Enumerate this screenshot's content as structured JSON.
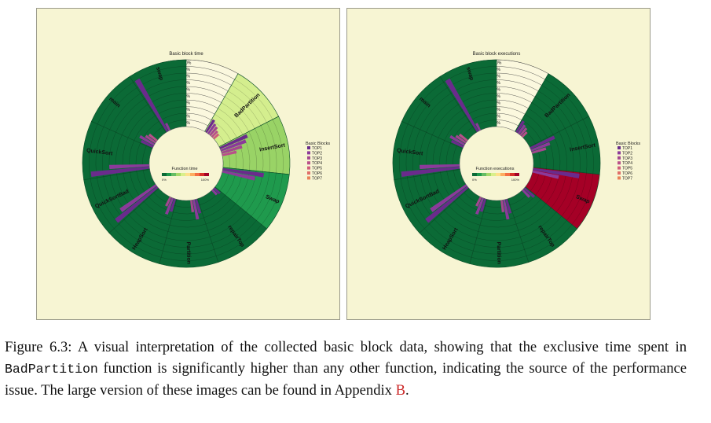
{
  "figure": {
    "caption_label": "Figure 6.3:",
    "caption_part1": "A visual interpretation of the collected basic block data, showing that the exclusive time spent in",
    "caption_code": "BadPartition",
    "caption_part2": "function is significantly higher than any other function, indicating the source of the performance issue. The large version of these images can be found in Appendix",
    "caption_ref": "B",
    "caption_end": "."
  },
  "colors": {
    "panel_bg": "#f7f5d3",
    "dark_green": "#0b6a36",
    "mid_green": "#1f9a4d",
    "light_green": "#99d366",
    "pale_green": "#d4ee8e",
    "red": "#a50026",
    "gap_fill": "#fbf8de",
    "top_colors": [
      "#6a2b8c",
      "#8b3a9a",
      "#a4468f",
      "#b9508a",
      "#d05d7a",
      "#e06e6a",
      "#ea8158"
    ]
  },
  "chart_data": [
    {
      "type": "radial-bar",
      "title": "Basic block time",
      "scale_labels": [
        "100%",
        "90%",
        "80%",
        "70%",
        "60%",
        "50%",
        "40%",
        "30%",
        "20%",
        "10%"
      ],
      "center_label": "Function time",
      "center_min_label": "0%",
      "center_max_label": "100%",
      "legend_title": "Basic Blocks",
      "legend_items": [
        "TOP1",
        "TOP2",
        "TOP3",
        "TOP4",
        "TOP5",
        "TOP6",
        "TOP7"
      ],
      "functions": [
        {
          "name": "BadPartition",
          "color": "#d4ee8e"
        },
        {
          "name": "InsertSort",
          "color": "#99d366"
        },
        {
          "name": "Swap",
          "color": "#1f9a4d"
        },
        {
          "name": "repairTop",
          "color": "#0b6a36"
        },
        {
          "name": "Partition",
          "color": "#0b6a36"
        },
        {
          "name": "HeapSort",
          "color": "#0b6a36"
        },
        {
          "name": "QuickSortBad",
          "color": "#0b6a36"
        },
        {
          "name": "QuickSort",
          "color": "#0b6a36"
        },
        {
          "name": "main",
          "color": "#0b6a36"
        },
        {
          "name": "swap",
          "color": "#0b6a36"
        }
      ],
      "bars": [
        [
          0.22,
          0.18,
          0.16,
          0.12,
          0.1
        ],
        [
          0.45,
          0.4,
          0.32,
          0.22
        ],
        [
          0.62,
          0.5
        ],
        [
          0.12,
          0.1
        ],
        [
          0.22,
          0.3,
          0.18
        ],
        [
          0.2,
          0.26,
          0.15
        ],
        [
          0.8,
          0.65
        ],
        [
          0.88,
          0.6
        ],
        [
          0.2,
          0.25,
          0.18,
          0.15
        ],
        [
          0.9,
          0.12
        ]
      ]
    },
    {
      "type": "radial-bar",
      "title": "Basic block executions",
      "scale_labels": [
        "100%",
        "90%",
        "80%",
        "70%",
        "60%",
        "50%",
        "40%",
        "30%",
        "20%",
        "10%"
      ],
      "center_label": "Function executions",
      "center_min_label": "0%",
      "center_max_label": "100%",
      "legend_title": "Basic Blocks",
      "legend_items": [
        "TOP1",
        "TOP2",
        "TOP3",
        "TOP4",
        "TOP5",
        "TOP6",
        "TOP7"
      ],
      "functions": [
        {
          "name": "BadPartition",
          "color": "#0b6a36"
        },
        {
          "name": "InsertSort",
          "color": "#0b6a36"
        },
        {
          "name": "Swap",
          "color": "#a50026"
        },
        {
          "name": "repairTop",
          "color": "#0b6a36"
        },
        {
          "name": "Partition",
          "color": "#0b6a36"
        },
        {
          "name": "HeapSort",
          "color": "#0b6a36"
        },
        {
          "name": "QuickSortBad",
          "color": "#0b6a36"
        },
        {
          "name": "QuickSort",
          "color": "#0b6a36"
        },
        {
          "name": "main",
          "color": "#0b6a36"
        },
        {
          "name": "swap",
          "color": "#0b6a36"
        }
      ],
      "bars": [
        [
          0.2,
          0.16,
          0.14,
          0.1
        ],
        [
          0.4,
          0.3,
          0.22
        ],
        [
          0.7,
          0.4
        ],
        [
          0.2,
          0.15
        ],
        [
          0.22,
          0.3,
          0.18
        ],
        [
          0.2,
          0.26,
          0.15
        ],
        [
          0.8,
          0.65
        ],
        [
          0.88,
          0.6
        ],
        [
          0.2,
          0.25,
          0.18,
          0.15
        ],
        [
          0.9,
          0.12
        ]
      ]
    }
  ]
}
